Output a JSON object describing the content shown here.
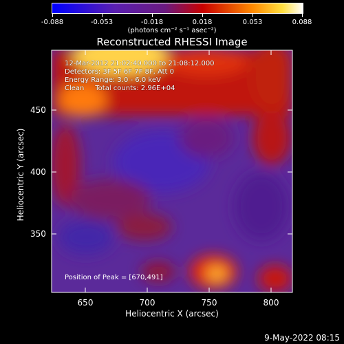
{
  "colorbar": {
    "ticks": [
      "-0.088",
      "-0.053",
      "-0.018",
      "0.018",
      "0.053",
      "0.088"
    ],
    "units": "(photons cm⁻² s⁻¹ asec⁻²)",
    "min": -0.088,
    "max": 0.088
  },
  "chart_data": {
    "type": "heatmap",
    "title": "Reconstructed RHESSI Image",
    "xlabel": "Heliocentric X (arcsec)",
    "ylabel": "Heliocentric Y (arcsec)",
    "xlim": [
      622,
      816
    ],
    "ylim": [
      297,
      492
    ],
    "xticks": [
      "650",
      "700",
      "750",
      "800"
    ],
    "yticks": [
      "350",
      "400",
      "450"
    ],
    "info_lines": [
      "12-Mar-2012 21:02:40.000 to 21:08:12.000",
      "Detectors: 3F 5F 6F 7F 8F, Att 0",
      "Energy Range: 3.0 - 6.0 keV",
      "Clean     Total counts: 2.96E+04"
    ],
    "peak_label": "Position of Peak = [670,491]",
    "peak_position": [
      670,
      491
    ],
    "colormap": "rainbow/heat: blue-purple-red-orange-yellow-white"
  },
  "footer": {
    "date": "9-May-2022 08:15"
  }
}
